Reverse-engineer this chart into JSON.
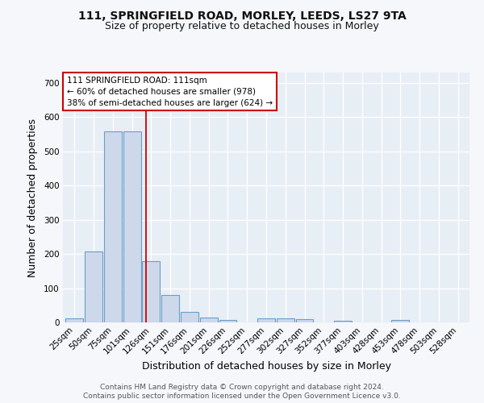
{
  "title1": "111, SPRINGFIELD ROAD, MORLEY, LEEDS, LS27 9TA",
  "title2": "Size of property relative to detached houses in Morley",
  "xlabel": "Distribution of detached houses by size in Morley",
  "ylabel": "Number of detached properties",
  "categories": [
    "25sqm",
    "50sqm",
    "75sqm",
    "101sqm",
    "126sqm",
    "151sqm",
    "176sqm",
    "201sqm",
    "226sqm",
    "252sqm",
    "277sqm",
    "302sqm",
    "327sqm",
    "352sqm",
    "377sqm",
    "403sqm",
    "428sqm",
    "453sqm",
    "478sqm",
    "503sqm",
    "528sqm"
  ],
  "values": [
    12,
    207,
    557,
    557,
    180,
    80,
    30,
    14,
    8,
    0,
    11,
    11,
    9,
    0,
    5,
    0,
    0,
    7,
    0,
    0,
    0
  ],
  "bar_color": "#cdd9ea",
  "bar_edge_color": "#6b9ec8",
  "red_line_x": 3.72,
  "annotation_text": "111 SPRINGFIELD ROAD: 111sqm\n← 60% of detached houses are smaller (978)\n38% of semi-detached houses are larger (624) →",
  "annotation_box_color": "#ffffff",
  "annotation_box_edge": "#cc0000",
  "ylim": [
    0,
    730
  ],
  "yticks": [
    0,
    100,
    200,
    300,
    400,
    500,
    600,
    700
  ],
  "footer1": "Contains HM Land Registry data © Crown copyright and database right 2024.",
  "footer2": "Contains public sector information licensed under the Open Government Licence v3.0.",
  "fig_bg_color": "#f5f7fa",
  "plot_bg_color": "#e8eef5",
  "grid_color": "#ffffff",
  "title_fontsize": 10,
  "subtitle_fontsize": 9,
  "axis_label_fontsize": 9,
  "tick_fontsize": 7.5,
  "footer_fontsize": 6.5
}
